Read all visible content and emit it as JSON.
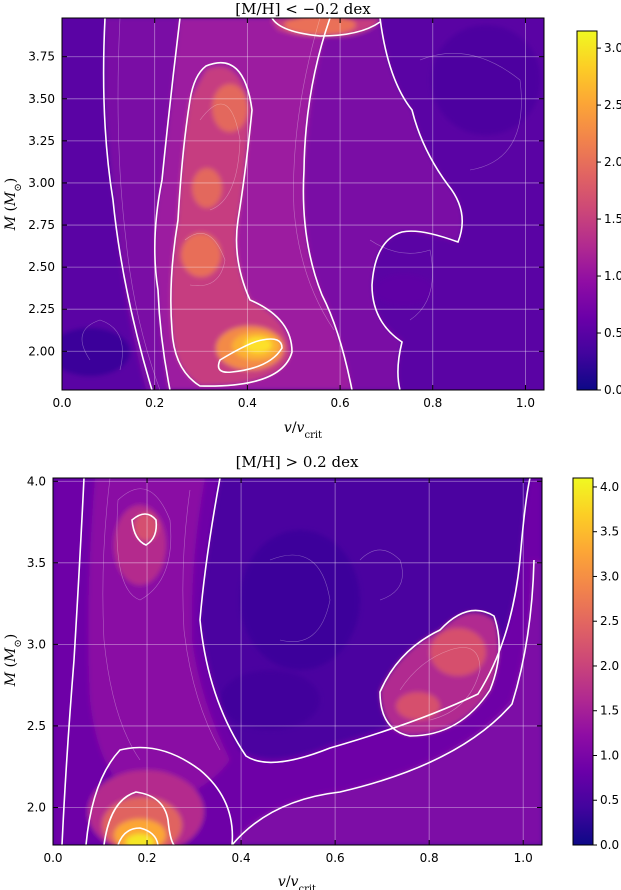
{
  "chart_data": [
    {
      "type": "heatmap",
      "title": "[M/H] < −0.2 dex",
      "xlabel": "v/v_crit",
      "ylabel": "M (M_⊙)",
      "xlim": [
        0.0,
        1.04
      ],
      "ylim": [
        1.77,
        3.98
      ],
      "xticks": [
        "0.0",
        "0.2",
        "0.4",
        "0.6",
        "0.8",
        "1.0"
      ],
      "xtick_values": [
        0.0,
        0.2,
        0.4,
        0.6,
        0.8,
        1.0
      ],
      "yticks": [
        "2.00",
        "2.25",
        "2.50",
        "2.75",
        "3.00",
        "3.25",
        "3.50",
        "3.75"
      ],
      "ytick_values": [
        2.0,
        2.25,
        2.5,
        2.75,
        3.0,
        3.25,
        3.5,
        3.75
      ],
      "grid": true,
      "colormap": "plasma",
      "colorbar_range": [
        0.0,
        3.15
      ],
      "colorbar_ticks": [
        "0.0",
        "0.5",
        "1.0",
        "1.5",
        "2.0",
        "2.5",
        "3.0"
      ],
      "colorbar_tick_values": [
        0.0,
        0.5,
        1.0,
        1.5,
        2.0,
        2.5,
        3.0
      ],
      "peaks": [
        {
          "x": 0.4,
          "y": 1.98,
          "density": 3.1
        },
        {
          "x": 0.3,
          "y": 2.55,
          "density": 2.0
        },
        {
          "x": 0.3,
          "y": 2.97,
          "density": 1.9
        },
        {
          "x": 0.32,
          "y": 3.52,
          "density": 1.9
        },
        {
          "x": 0.5,
          "y": 3.92,
          "density": 2.0
        },
        {
          "x": 0.73,
          "y": 2.38,
          "density": 0.45
        },
        {
          "x": 0.04,
          "y": 1.98,
          "density": 0.25
        }
      ]
    },
    {
      "type": "heatmap",
      "title": "[M/H] > 0.2 dex",
      "xlabel": "v/v_crit",
      "ylabel": "M (M_⊙)",
      "xlim": [
        0.0,
        1.04
      ],
      "ylim": [
        1.77,
        4.02
      ],
      "xticks": [
        "0.0",
        "0.2",
        "0.4",
        "0.6",
        "0.8",
        "1.0"
      ],
      "xtick_values": [
        0.0,
        0.2,
        0.4,
        0.6,
        0.8,
        1.0
      ],
      "yticks": [
        "2.0",
        "2.5",
        "3.0",
        "3.5",
        "4.0"
      ],
      "ytick_values": [
        2.0,
        2.5,
        3.0,
        3.5,
        4.0
      ],
      "grid": true,
      "colormap": "plasma",
      "colorbar_range": [
        0.0,
        4.1
      ],
      "colorbar_ticks": [
        "0.0",
        "0.5",
        "1.0",
        "1.5",
        "2.0",
        "2.5",
        "3.0",
        "3.5",
        "4.0"
      ],
      "colorbar_tick_values": [
        0.0,
        0.5,
        1.0,
        1.5,
        2.0,
        2.5,
        3.0,
        3.5,
        4.0
      ],
      "peaks": [
        {
          "x": 0.2,
          "y": 1.83,
          "density": 4.0
        },
        {
          "x": 0.21,
          "y": 3.72,
          "density": 2.2
        },
        {
          "x": 0.77,
          "y": 2.6,
          "density": 2.3
        },
        {
          "x": 0.86,
          "y": 2.97,
          "density": 2.4
        },
        {
          "x": 0.8,
          "y": 2.8,
          "density": 1.9
        }
      ]
    }
  ]
}
